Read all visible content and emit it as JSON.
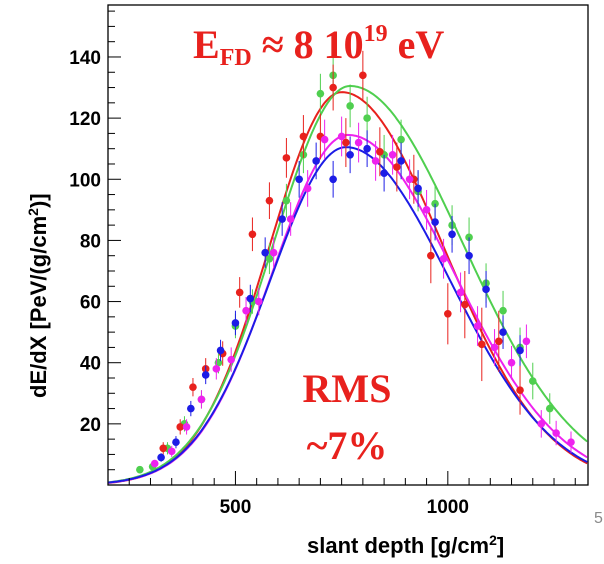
{
  "slide_number": "5",
  "colors": {
    "red": "#e8211d",
    "green": "#4fcf4f",
    "magenta": "#ee22ee",
    "blue": "#1c1ce6"
  },
  "chart_data": {
    "type": "scatter",
    "title": "",
    "xlabel": "slant depth [g/cm",
    "xlabel_sup": "2",
    "xlabel_tail": "]",
    "ylabel": "dE/dX [PeV/(g/cm",
    "ylabel_sup": "2",
    "ylabel_tail": ")]",
    "xlim": [
      200,
      1330
    ],
    "ylim": [
      0,
      157
    ],
    "xticks": [
      "500",
      "1000"
    ],
    "yticks": [
      "20",
      "40",
      "60",
      "80",
      "100",
      "120",
      "140"
    ],
    "annotations": {
      "energy_main": "E",
      "energy_sub": "FD",
      "energy_rest": " ≈ 8 10",
      "energy_sup": "19",
      "energy_unit": " eV",
      "rms_line1": "RMS",
      "rms_line2": "~7%"
    },
    "fits": [
      {
        "color": "red",
        "peak_x": 750,
        "peak_y": 128.5,
        "sigma_left": 170,
        "sigma_right": 240
      },
      {
        "color": "green",
        "peak_x": 770,
        "peak_y": 130.5,
        "sigma_left": 180,
        "sigma_right": 265
      },
      {
        "color": "magenta",
        "peak_x": 765,
        "peak_y": 114.5,
        "sigma_left": 178,
        "sigma_right": 250
      },
      {
        "color": "blue",
        "peak_x": 760,
        "peak_y": 110.5,
        "sigma_left": 178,
        "sigma_right": 245
      }
    ],
    "series": [
      {
        "color": "green",
        "x": [
          275,
          305,
          340,
          380,
          420,
          460,
          500,
          540,
          580,
          620,
          660,
          700,
          730,
          770,
          810,
          850,
          890,
          930,
          970,
          1010,
          1050,
          1090,
          1130,
          1170,
          1200,
          1240
        ],
        "y": [
          5,
          6,
          12,
          20,
          28,
          40,
          52,
          60,
          74,
          93,
          108,
          128,
          134,
          124,
          120,
          108,
          113,
          96,
          92,
          85,
          81,
          66,
          57,
          45,
          34,
          25
        ],
        "err": [
          1.2,
          1.4,
          2,
          2.5,
          3,
          3.5,
          4,
          4,
          5,
          5.5,
          6,
          6.5,
          7,
          7,
          7,
          6.5,
          6.5,
          6.5,
          6.5,
          6.5,
          6.5,
          6.5,
          6.5,
          6.5,
          6,
          5
        ]
      },
      {
        "color": "red",
        "x": [
          330,
          370,
          400,
          430,
          470,
          510,
          540,
          580,
          620,
          660,
          700,
          730,
          760,
          800,
          840,
          880,
          920,
          960,
          1000,
          1040,
          1080,
          1120,
          1170
        ],
        "y": [
          12,
          19,
          32,
          38,
          43,
          63,
          82,
          93,
          107,
          114,
          114,
          130,
          112,
          134,
          109,
          104,
          100,
          75,
          56,
          59,
          46,
          47,
          31
        ],
        "err": [
          2,
          2.5,
          3,
          3.5,
          4,
          5,
          5.5,
          6,
          6.5,
          7,
          7.5,
          7.5,
          8,
          8,
          8,
          8,
          8,
          9,
          10,
          11,
          12,
          10,
          8
        ]
      },
      {
        "color": "magenta",
        "x": [
          310,
          350,
          385,
          420,
          455,
          490,
          525,
          555,
          590,
          630,
          670,
          710,
          750,
          790,
          830,
          870,
          910,
          950,
          990,
          1030,
          1070,
          1110,
          1150,
          1185,
          1220,
          1255,
          1290
        ],
        "y": [
          7,
          11,
          19,
          28,
          38,
          41,
          57,
          60,
          76,
          87,
          97,
          113,
          114,
          112,
          106,
          108,
          100,
          90,
          74,
          63,
          52,
          45,
          40,
          47,
          20,
          17,
          14
        ],
        "err": [
          1.2,
          1.8,
          2.5,
          3,
          3.5,
          4,
          4.5,
          4.5,
          5,
          5.5,
          6,
          6.5,
          6.5,
          6.5,
          6.5,
          6.5,
          6.5,
          6.5,
          6.5,
          6.5,
          6.5,
          6,
          5.5,
          5.5,
          4.5,
          4,
          3.5
        ]
      },
      {
        "color": "blue",
        "x": [
          325,
          360,
          395,
          430,
          465,
          500,
          535,
          570,
          610,
          650,
          690,
          730,
          770,
          810,
          850,
          890,
          930,
          970,
          1010,
          1050,
          1090,
          1130,
          1170
        ],
        "y": [
          9,
          14,
          25,
          36,
          44,
          53,
          61,
          76,
          87,
          100,
          106,
          100,
          108,
          110,
          102,
          106,
          97,
          86,
          82,
          75,
          64,
          50,
          44
        ],
        "err": [
          1.4,
          2,
          2.5,
          3,
          3.5,
          4,
          4.5,
          5,
          5.5,
          6,
          6,
          6,
          6,
          6,
          6,
          6,
          6,
          6,
          6,
          6,
          6,
          5.5,
          5
        ]
      }
    ]
  }
}
